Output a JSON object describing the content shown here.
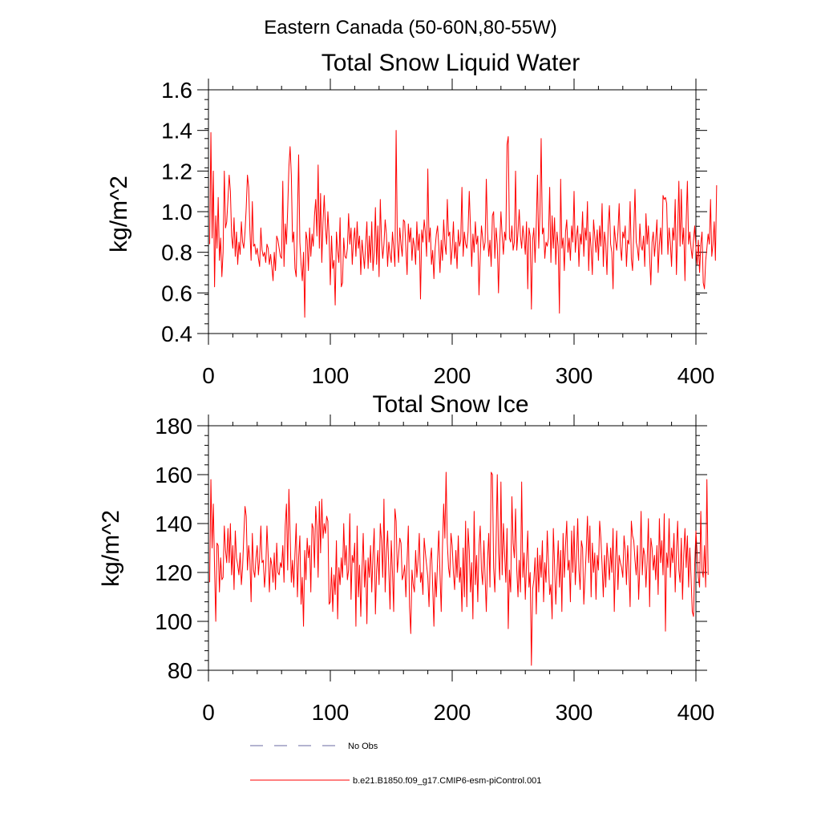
{
  "figure": {
    "title": "Eastern Canada (50-60N,80-55W)",
    "line_color": "#ff0000",
    "obs_color": "#6a6aa0"
  },
  "legend": {
    "obs_label": "No Obs",
    "model_label": "b.e21.B1850.f09_g17.CMIP6-esm-piControl.001"
  },
  "chart_data": [
    {
      "type": "line",
      "title": "Total Snow Liquid Water",
      "xlabel": "",
      "ylabel": "kg/m^2",
      "xlim": [
        0,
        400
      ],
      "ylim": [
        0.4,
        1.6
      ],
      "xticks": [
        0,
        100,
        200,
        300,
        400
      ],
      "yticks": [
        0.4,
        0.6,
        0.8,
        1.0,
        1.2,
        1.4,
        1.6
      ],
      "ytick_labels": [
        "0.4",
        "0.6",
        "0.8",
        "1.0",
        "1.2",
        "1.4",
        "1.6"
      ],
      "series": [
        {
          "name": "b.e21.B1850.f09_g17.CMIP6-esm-piControl.001",
          "x_start": 1,
          "values": [
            0.84,
            1.39,
            0.87,
            1.2,
            0.63,
            0.98,
            0.82,
            1.07,
            0.76,
            0.87,
            0.68,
            0.8,
            1.2,
            0.92,
            0.95,
            1.06,
            1.18,
            1.1,
            0.88,
            0.82,
            0.97,
            0.78,
            0.9,
            0.74,
            0.85,
            0.79,
            0.95,
            0.85,
            0.82,
            0.9,
            1.02,
            1.18,
            1.12,
            0.91,
            0.76,
            1.05,
            0.83,
            0.84,
            0.79,
            0.82,
            0.77,
            0.73,
            0.92,
            0.81,
            0.78,
            0.8,
            0.75,
            0.84,
            0.82,
            0.74,
            0.79,
            0.73,
            0.66,
            0.8,
            0.71,
            0.88,
            0.86,
            0.82,
            0.78,
            0.77,
            1.15,
            0.73,
            0.94,
            0.84,
            1.01,
            1.22,
            1.32,
            1.18,
            0.85,
            0.9,
            0.72,
            0.68,
            0.97,
            1.28,
            0.85,
            0.74,
            0.66,
            0.8,
            0.48,
            0.9,
            0.86,
            0.71,
            0.92,
            0.78,
            0.89,
            0.83,
            0.98,
            1.06,
            0.88,
            1.23,
            0.82,
            1.09,
            0.75,
            0.95,
            1.08,
            0.92,
            0.84,
            1.0,
            0.88,
            0.64,
            0.88,
            0.72,
            0.76,
            0.54,
            0.9,
            0.81,
            0.75,
            0.97,
            0.63,
            0.65,
            0.87,
            0.78,
            0.77,
            0.82,
            0.99,
            0.84,
            0.92,
            0.74,
            0.86,
            0.92,
            0.78,
            0.95,
            0.82,
            0.88,
            0.69,
            0.86,
            0.79,
            0.72,
            0.84,
            0.95,
            0.72,
            0.88,
            0.75,
            0.95,
            0.71,
            0.8,
            1.02,
            0.74,
            0.93,
            0.68,
            1.06,
            0.86,
            0.77,
            0.84,
            0.96,
            0.89,
            0.73,
            0.85,
            0.79,
            0.75,
            0.9,
            0.82,
            0.73,
            1.4,
            0.86,
            0.75,
            0.92,
            0.84,
            0.78,
            0.96,
            0.95,
            0.82,
            0.69,
            0.94,
            0.85,
            0.92,
            0.76,
            0.87,
            0.83,
            0.74,
            0.95,
            0.81,
            0.89,
            0.57,
            0.91,
            0.85,
            0.96,
            0.9,
            0.78,
            1.21,
            0.85,
            0.92,
            0.74,
            0.81,
            0.67,
            0.82,
            0.89,
            0.93,
            0.83,
            0.7,
            0.86,
            0.76,
            0.96,
            0.84,
            0.79,
            1.06,
            0.88,
            0.9,
            0.74,
            0.82,
            0.95,
            0.77,
            0.85,
            0.72,
            0.91,
            0.83,
            0.86,
            1.12,
            0.78,
            0.9,
            0.84,
            0.82,
            0.9,
            1.1,
            0.92,
            0.73,
            0.89,
            0.8,
            0.95,
            0.84,
            0.88,
            0.59,
            0.78,
            0.93,
            0.87,
            0.81,
            0.85,
            1.16,
            0.9,
            0.78,
            0.86,
            0.73,
            0.98,
            1.0,
            0.77,
            0.92,
            0.84,
            0.6,
            0.84,
            1.0,
            0.88,
            0.79,
            0.9,
            0.86,
            1.33,
            1.37,
            0.87,
            0.85,
            0.93,
            0.81,
            0.85,
            1.2,
            0.81,
            0.9,
            1.01,
            0.88,
            0.82,
            0.93,
            0.87,
            0.79,
            0.95,
            0.62,
            0.92,
            0.88,
            0.52,
            0.86,
            0.92,
            0.75,
            0.94,
            1.18,
            0.82,
            0.99,
            1.36,
            0.89,
            0.92,
            0.77,
            0.85,
            0.83,
            0.87,
            1.12,
            0.75,
            0.98,
            0.82,
            0.97,
            0.74,
            0.9,
            0.83,
            0.5,
            1.16,
            0.82,
            0.87,
            0.71,
            0.9,
            0.96,
            0.8,
            0.87,
            0.76,
            0.93,
            0.85,
            1.1,
            0.8,
            0.88,
            0.93,
            0.73,
            0.89,
            0.84,
            1.0,
            0.78,
            0.92,
            0.86,
            1.05,
            0.71,
            0.9,
            0.82,
            0.69,
            0.96,
            0.88,
            0.8,
            0.91,
            0.76,
            0.93,
            0.83,
            1.04,
            0.73,
            0.9,
            0.84,
            0.69,
            0.93,
            1.03,
            0.84,
            0.8,
            0.62,
            0.93,
            0.86,
            0.81,
            0.9,
            1.04,
            0.83,
            0.76,
            0.9,
            0.87,
            0.93,
            0.73,
            0.86,
            0.84,
            1.05,
            0.77,
            0.71,
            0.9,
            1.11,
            0.85,
            0.82,
            0.76,
            0.94,
            0.83,
            0.81,
            0.88,
            0.73,
            0.99,
            0.84,
            0.93,
            0.78,
            0.64,
            0.85,
            0.9,
            0.78,
            0.86,
            0.96,
            0.7,
            0.84,
            0.92,
            0.79,
            1.08,
            1.06,
            1.07,
            1.04,
            0.79,
            0.92,
            0.85,
            0.73,
            0.92,
            0.86,
            1.06,
            0.69,
            0.9,
            1.15,
            0.83,
            1.11,
            0.84,
            0.92,
            0.66,
            0.95,
            1.15,
            0.84,
            0.9,
            0.82,
            0.77,
            0.86,
            0.93,
            0.82,
            0.74,
            0.86,
            0.7,
            0.84,
            0.9,
            0.65,
            0.62,
            0.76,
            0.82,
            0.89,
            0.84,
            1.06,
            0.78,
            0.84,
            0.95,
            0.76,
            1.13
          ]
        }
      ]
    },
    {
      "type": "line",
      "title": "Total Snow Ice",
      "xlabel": "",
      "ylabel": "kg/m^2",
      "xlim": [
        0,
        400
      ],
      "ylim": [
        80,
        180
      ],
      "xticks": [
        0,
        100,
        200,
        300,
        400
      ],
      "yticks": [
        80,
        100,
        120,
        140,
        160,
        180
      ],
      "ytick_labels": [
        "80",
        "100",
        "120",
        "140",
        "160",
        "180"
      ],
      "series": [
        {
          "name": "b.e21.B1850.f09_g17.CMIP6-esm-piControl.001",
          "x_start": 1,
          "values": [
            116,
            158,
            130,
            148,
            122,
            100,
            132,
            131,
            112,
            126,
            117,
            118,
            139,
            129,
            124,
            138,
            124,
            140,
            119,
            131,
            113,
            137,
            126,
            123,
            119,
            128,
            115,
            122,
            135,
            147,
            143,
            121,
            131,
            125,
            108,
            136,
            121,
            118,
            126,
            131,
            119,
            126,
            139,
            124,
            125,
            114,
            121,
            139,
            127,
            112,
            126,
            123,
            116,
            128,
            113,
            132,
            120,
            119,
            124,
            122,
            131,
            116,
            139,
            148,
            121,
            154,
            136,
            116,
            125,
            114,
            128,
            140,
            110,
            126,
            135,
            107,
            118,
            98,
            129,
            117,
            134,
            126,
            131,
            112,
            140,
            138,
            122,
            147,
            139,
            118,
            149,
            128,
            150,
            134,
            140,
            136,
            143,
            141,
            107,
            108,
            122,
            104,
            119,
            111,
            133,
            101,
            122,
            115,
            126,
            118,
            140,
            123,
            131,
            117,
            121,
            144,
            109,
            127,
            124,
            132,
            98,
            139,
            110,
            123,
            102,
            121,
            136,
            114,
            125,
            99,
            126,
            118,
            131,
            112,
            127,
            138,
            103,
            121,
            129,
            115,
            140,
            133,
            118,
            150,
            112,
            128,
            137,
            121,
            105,
            133,
            120,
            104,
            146,
            141,
            120,
            127,
            134,
            132,
            117,
            119,
            123,
            110,
            125,
            139,
            106,
            95,
            121,
            115,
            112,
            129,
            118,
            125,
            136,
            116,
            120,
            111,
            134,
            128,
            123,
            118,
            106,
            125,
            130,
            114,
            98,
            120,
            110,
            125,
            137,
            119,
            104,
            130,
            148,
            134,
            161,
            132,
            122,
            118,
            136,
            131,
            120,
            113,
            129,
            118,
            135,
            116,
            122,
            104,
            130,
            110,
            141,
            106,
            138,
            129,
            112,
            124,
            101,
            145,
            115,
            127,
            108,
            131,
            139,
            121,
            115,
            133,
            118,
            104,
            125,
            136,
            114,
            161,
            160,
            122,
            112,
            132,
            160,
            128,
            117,
            157,
            119,
            140,
            128,
            116,
            138,
            97,
            121,
            112,
            151,
            132,
            126,
            146,
            121,
            110,
            125,
            112,
            157,
            118,
            128,
            109,
            124,
            137,
            114,
            120,
            82,
            113,
            117,
            126,
            103,
            130,
            112,
            127,
            118,
            133,
            108,
            124,
            116,
            137,
            124,
            111,
            115,
            101,
            138,
            123,
            107,
            120,
            133,
            114,
            129,
            104,
            136,
            118,
            131,
            141,
            121,
            125,
            108,
            137,
            120,
            139,
            115,
            126,
            142,
            121,
            113,
            133,
            130,
            107,
            118,
            129,
            143,
            124,
            139,
            110,
            132,
            120,
            128,
            109,
            127,
            121,
            141,
            134,
            123,
            110,
            127,
            114,
            132,
            125,
            117,
            130,
            120,
            138,
            104,
            125,
            137,
            113,
            127,
            124,
            122,
            118,
            135,
            129,
            115,
            131,
            121,
            106,
            141,
            135,
            133,
            125,
            119,
            131,
            109,
            123,
            145,
            119,
            130,
            127,
            114,
            125,
            142,
            106,
            134,
            130,
            121,
            127,
            117,
            131,
            111,
            142,
            124,
            133,
            119,
            144,
            96,
            128,
            122,
            142,
            118,
            130,
            124,
            136,
            112,
            128,
            141,
            121,
            116,
            134,
            109,
            127,
            138,
            122,
            135,
            114,
            130,
            118,
            104,
            102,
            123,
            137,
            128,
            118,
            114,
            145,
            121,
            118,
            131,
            114,
            158,
            119
          ]
        }
      ]
    }
  ]
}
